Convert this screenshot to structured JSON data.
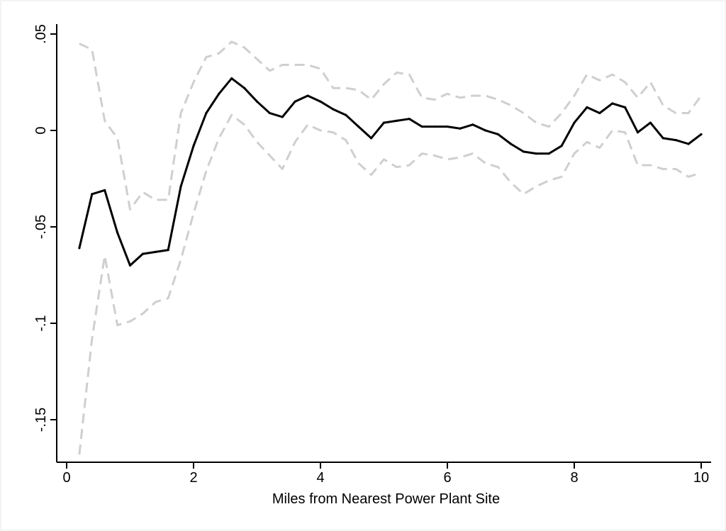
{
  "chart_data": {
    "type": "line",
    "title": "",
    "xlabel": "Miles from Nearest Power Plant Site",
    "ylabel": "",
    "xlim": [
      0,
      10
    ],
    "ylim": [
      -0.17,
      0.05
    ],
    "x_ticks": [
      0,
      2,
      4,
      6,
      8,
      10
    ],
    "x_tick_labels": [
      "0",
      "2",
      "4",
      "6",
      "8",
      "10"
    ],
    "y_ticks": [
      0.05,
      0,
      -0.05,
      -0.1,
      -0.15
    ],
    "y_tick_labels": [
      ".05",
      "0",
      "-.05",
      "-.1",
      "-.15"
    ],
    "grid": false,
    "legend": "none",
    "x": [
      0.2,
      0.4,
      0.6,
      0.8,
      1.0,
      1.2,
      1.4,
      1.6,
      1.8,
      2.0,
      2.2,
      2.4,
      2.6,
      2.8,
      3.0,
      3.2,
      3.4,
      3.6,
      3.8,
      4.0,
      4.2,
      4.4,
      4.6,
      4.8,
      5.0,
      5.2,
      5.4,
      5.6,
      5.8,
      6.0,
      6.2,
      6.4,
      6.6,
      6.8,
      7.0,
      7.2,
      7.4,
      7.6,
      7.8,
      8.0,
      8.2,
      8.4,
      8.6,
      8.8,
      9.0,
      9.2,
      9.4,
      9.6,
      9.8,
      10.0
    ],
    "series": [
      {
        "role": "estimate",
        "color": "#000000",
        "style": "solid",
        "values": [
          -0.061,
          -0.033,
          -0.031,
          -0.053,
          -0.07,
          -0.064,
          -0.063,
          -0.062,
          -0.029,
          -0.008,
          0.009,
          0.019,
          0.027,
          0.022,
          0.015,
          0.009,
          0.007,
          0.015,
          0.018,
          0.015,
          0.011,
          0.008,
          0.002,
          -0.004,
          0.004,
          0.005,
          0.006,
          0.002,
          0.002,
          0.002,
          0.001,
          0.003,
          0.0,
          -0.002,
          -0.007,
          -0.011,
          -0.012,
          -0.012,
          -0.008,
          0.004,
          0.012,
          0.009,
          0.014,
          0.012,
          -0.001,
          0.004,
          -0.004,
          -0.005,
          -0.007,
          -0.002
        ]
      },
      {
        "role": "upper_ci",
        "color": "#cfcfcf",
        "style": "dashed",
        "values": [
          0.045,
          0.042,
          0.005,
          -0.004,
          -0.041,
          -0.032,
          -0.036,
          -0.036,
          0.009,
          0.025,
          0.038,
          0.04,
          0.046,
          0.043,
          0.037,
          0.031,
          0.034,
          0.034,
          0.034,
          0.032,
          0.022,
          0.022,
          0.021,
          0.016,
          0.024,
          0.03,
          0.029,
          0.017,
          0.016,
          0.019,
          0.017,
          0.018,
          0.018,
          0.016,
          0.013,
          0.009,
          0.004,
          0.002,
          0.009,
          0.018,
          0.029,
          0.026,
          0.029,
          0.025,
          0.017,
          0.025,
          0.013,
          0.009,
          0.009,
          0.018
        ]
      },
      {
        "role": "lower_ci",
        "color": "#cfcfcf",
        "style": "dashed",
        "values": [
          -0.168,
          -0.108,
          -0.065,
          -0.101,
          -0.099,
          -0.095,
          -0.089,
          -0.087,
          -0.067,
          -0.043,
          -0.021,
          -0.004,
          0.008,
          0.003,
          -0.006,
          -0.013,
          -0.02,
          -0.006,
          0.003,
          0.0,
          -0.001,
          -0.005,
          -0.017,
          -0.023,
          -0.015,
          -0.019,
          -0.018,
          -0.012,
          -0.013,
          -0.015,
          -0.014,
          -0.012,
          -0.017,
          -0.019,
          -0.027,
          -0.033,
          -0.029,
          -0.026,
          -0.024,
          -0.012,
          -0.006,
          -0.009,
          0.0,
          -0.001,
          -0.018,
          -0.018,
          -0.02,
          -0.02,
          -0.024,
          -0.022
        ]
      }
    ]
  }
}
